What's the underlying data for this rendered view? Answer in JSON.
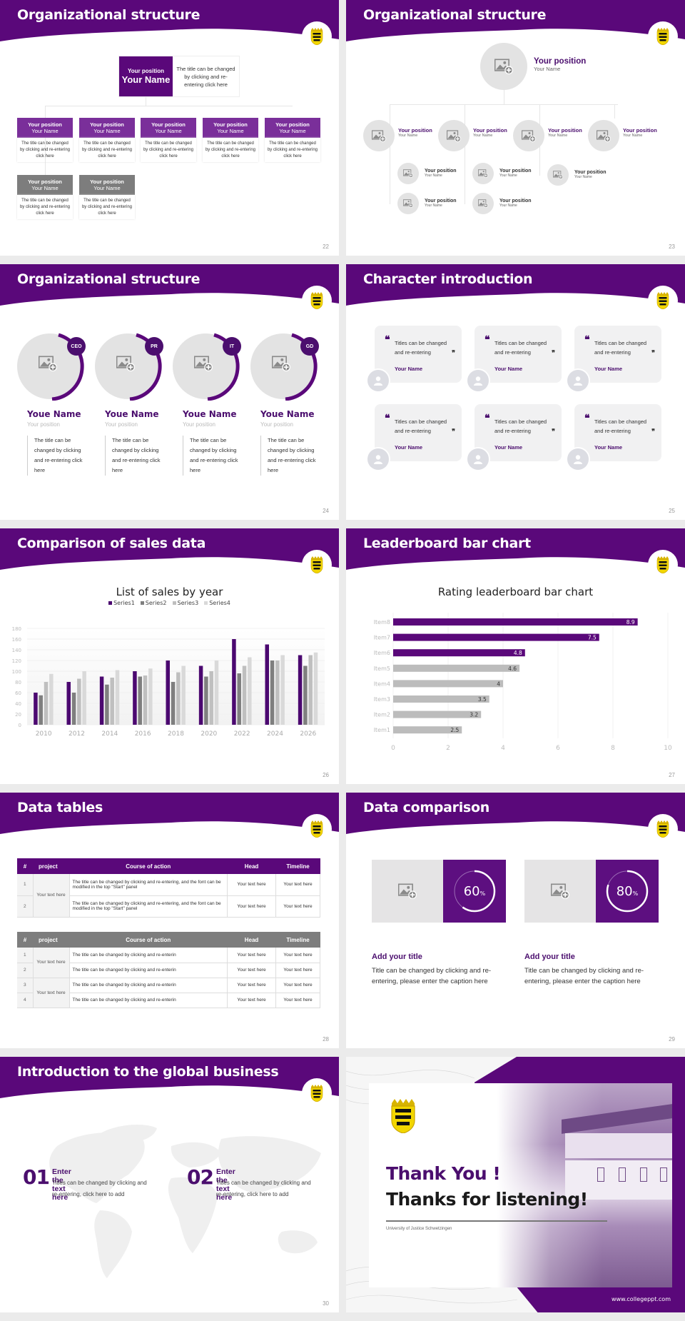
{
  "theme": {
    "accent": "#5a087a",
    "accent_light": "#7a2f9a",
    "gray_header": "#7d7d7d",
    "bar_gray": "#bcbcbc"
  },
  "slides": {
    "s22": {
      "title": "Organizational structure",
      "page": "22",
      "top": {
        "position": "Your position",
        "name": "Your Name",
        "desc": "The title can be changed by clicking and re-entering click here"
      },
      "cards": [
        {
          "position": "Your position",
          "name": "Your Name",
          "desc": "The title can be changed by clicking and re-entering click here"
        },
        {
          "position": "Your position",
          "name": "Your Name",
          "desc": "The title can be changed by clicking and re-entering click here"
        },
        {
          "position": "Your position",
          "name": "Your Name",
          "desc": "The title can be changed by clicking and re-entering click here"
        },
        {
          "position": "Your position",
          "name": "Your Name",
          "desc": "The title can be changed by clicking and re-entering click here"
        },
        {
          "position": "Your position",
          "name": "Your Name",
          "desc": "The title can be changed by clicking and re-entering click here"
        },
        {
          "position": "Your position",
          "name": "Your Name",
          "desc": "The title can be changed by clicking and re-entering click here"
        },
        {
          "position": "Your position",
          "name": "Your Name",
          "desc": "The title can be changed by clicking and re-entering click here"
        }
      ]
    },
    "s23": {
      "title": "Organizational structure",
      "page": "23",
      "top": {
        "position": "Your position",
        "name": "Your Name"
      },
      "level2": [
        {
          "position": "Your position",
          "name": "Your Name"
        },
        {
          "position": "Your position",
          "name": "Your Name"
        },
        {
          "position": "Your position",
          "name": "Your Name"
        },
        {
          "position": "Your position",
          "name": "Your Name"
        }
      ],
      "level3": [
        {
          "position": "Your position",
          "name": "Your Name"
        },
        {
          "position": "Your position",
          "name": "Your Name"
        },
        {
          "position": "Your position",
          "name": "Your Name"
        },
        {
          "position": "Your position",
          "name": "Your Name"
        },
        {
          "position": "Your position",
          "name": "Your Name"
        }
      ]
    },
    "s24": {
      "title": "Organizational structure",
      "page": "24",
      "members": [
        {
          "badge": "CEO",
          "name": "Youe Name",
          "position": "Your position",
          "desc": "The title can be changed by clicking and re-entering click here"
        },
        {
          "badge": "PR",
          "name": "Youe Name",
          "position": "Your position",
          "desc": "The title can be changed by clicking and re-entering click here"
        },
        {
          "badge": "IT",
          "name": "Youe Name",
          "position": "Your position",
          "desc": "The title can be changed by clicking and re-entering click here"
        },
        {
          "badge": "GD",
          "name": "Youe Name",
          "position": "Your position",
          "desc": "The title can be changed by clicking and re-entering click here"
        }
      ]
    },
    "s25": {
      "title": "Character introduction",
      "page": "25",
      "cards": [
        {
          "quote": "Titles can be changed and re-entering",
          "name": "Your Name"
        },
        {
          "quote": "Titles can be changed and re-entering",
          "name": "Your Name"
        },
        {
          "quote": "Titles can be changed and re-entering",
          "name": "Your Name"
        },
        {
          "quote": "Titles can be changed and re-entering",
          "name": "Your Name"
        },
        {
          "quote": "Titles can be changed and re-entering",
          "name": "Your Name"
        },
        {
          "quote": "Titles can be changed and re-entering",
          "name": "Your Name"
        }
      ],
      "open_quote": "❝",
      "close_quote": "❞"
    },
    "s26": {
      "title": "Comparison of sales data",
      "page": "26"
    },
    "s27": {
      "title": "Leaderboard bar chart",
      "page": "27"
    },
    "s28": {
      "title": "Data tables",
      "page": "28",
      "headers": [
        "#",
        "project",
        "Course of action",
        "Head",
        "Timeline"
      ],
      "table1": [
        {
          "num": "1",
          "project": "Your text here",
          "action": "The title can be changed by clicking and re-entering, and the font can be modified in the top \"Start\" panel",
          "head": "Your text here",
          "timeline": "Your text here"
        },
        {
          "num": "2",
          "project": "",
          "action": "The title can be changed by clicking and re-entering, and the font can be modified in the top \"Start\" panel",
          "head": "Your text here",
          "timeline": "Your text here"
        }
      ],
      "table2": [
        {
          "num": "1",
          "project": "Your text here",
          "action": "The title can be changed by clicking and re-enterin",
          "head": "Your text here",
          "timeline": "Your text here"
        },
        {
          "num": "2",
          "project": "",
          "action": "The title can be changed by clicking and re-enterin",
          "head": "Your text here",
          "timeline": "Your text here"
        },
        {
          "num": "3",
          "project": "Your text here",
          "action": "The title can be changed by clicking and re-enterin",
          "head": "Your text here",
          "timeline": "Your text here"
        },
        {
          "num": "4",
          "project": "",
          "action": "The title can be changed by clicking and re-enterin",
          "head": "Your text here",
          "timeline": "Your text here"
        }
      ]
    },
    "s29": {
      "title": "Data comparison",
      "page": "29",
      "items": [
        {
          "value": "60",
          "unit": "%",
          "percent": 60,
          "heading": "Add your title",
          "desc": "Title can be changed by clicking and re-entering, please enter the caption here"
        },
        {
          "value": "80",
          "unit": "%",
          "percent": 80,
          "heading": "Add your title",
          "desc": "Title can be changed by clicking and re-entering, please enter the caption here"
        }
      ]
    },
    "s30": {
      "title": "Introduction to the global business",
      "page": "30",
      "items": [
        {
          "num": "01",
          "heading": "Enter the text here",
          "desc": "Titles can be changed by clicking and re-entering, click here to add"
        },
        {
          "num": "02",
          "heading": "Enter the text here",
          "desc": "Titles can be changed by clicking and re-entering, click here to add"
        }
      ]
    },
    "s31": {
      "thank_you": "Thank You !",
      "thanks": "Thanks for listening!",
      "university": "University of Justice Schwetzingen",
      "website": "www.collegeppt.com"
    }
  },
  "chart_data": [
    {
      "type": "bar",
      "title": "List of sales by year",
      "categories": [
        "2010",
        "2012",
        "2014",
        "2016",
        "2018",
        "2020",
        "2022",
        "2024",
        "2026"
      ],
      "series": [
        {
          "name": "Series1",
          "color": "#4b0870",
          "values": [
            60,
            80,
            90,
            100,
            120,
            110,
            160,
            150,
            130
          ]
        },
        {
          "name": "Series2",
          "color": "#7f7f7f",
          "values": [
            55,
            60,
            75,
            90,
            80,
            90,
            96,
            120,
            110
          ]
        },
        {
          "name": "Series3",
          "color": "#bfbfbf",
          "values": [
            80,
            86,
            88,
            92,
            98,
            100,
            110,
            120,
            130
          ]
        },
        {
          "name": "Series4",
          "color": "#d9d9d9",
          "values": [
            95,
            100,
            102,
            105,
            110,
            120,
            126,
            130,
            135
          ]
        }
      ],
      "xlabel": "",
      "ylabel": "",
      "ylim": [
        0,
        180
      ],
      "yticks": [
        0,
        20,
        40,
        60,
        80,
        100,
        120,
        140,
        160,
        180
      ],
      "legend_position": "top",
      "grid": true
    },
    {
      "type": "bar",
      "orientation": "horizontal",
      "title": "Rating leaderboard bar chart",
      "categories": [
        "Item8",
        "Item7",
        "Item6",
        "Item5",
        "Item4",
        "Item3",
        "Item2",
        "Item1"
      ],
      "values": [
        8.9,
        7.5,
        4.8,
        4.6,
        4,
        3.5,
        3.2,
        2.5
      ],
      "labels": [
        "8.9",
        "7.5",
        "4.8",
        "4.6",
        "4",
        "3.5",
        "3.2",
        "2.5"
      ],
      "highlight_top": 3,
      "xlim": [
        0,
        10
      ],
      "xticks": [
        0,
        2,
        4,
        6,
        8,
        10
      ],
      "grid": true
    }
  ]
}
